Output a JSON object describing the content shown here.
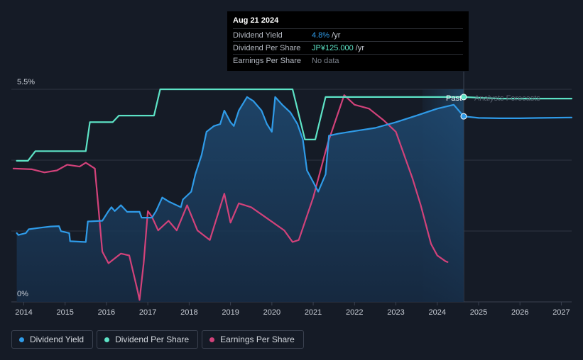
{
  "chart_data": {
    "type": "line",
    "tooltip": {
      "date": "Aug 21 2024",
      "rows": [
        {
          "label": "Dividend Yield",
          "value": "4.8%",
          "unit": " /yr"
        },
        {
          "label": "Dividend Per Share",
          "value": "JP¥125.000",
          "unit": " /yr"
        },
        {
          "label": "Earnings Per Share",
          "value": "No data",
          "unit": ""
        }
      ]
    },
    "y_tick_labels": {
      "top": "5.5%",
      "bottom": "0%"
    },
    "ylim": [
      0,
      5.5
    ],
    "xlim": [
      2013.7,
      2027.25
    ],
    "x_ticks": [
      "2014",
      "2015",
      "2016",
      "2017",
      "2018",
      "2019",
      "2020",
      "2021",
      "2022",
      "2023",
      "2024",
      "2025",
      "2026",
      "2027"
    ],
    "past_label": "Past",
    "forecast_label": "Analysts Forecasts",
    "forecast_start": 2024.64,
    "colors": {
      "background": "#151b26",
      "dividend_yield": "#2f9be8",
      "dividend_per_share": "#5de3c6",
      "earnings_per_share": "#d2427a",
      "grid": "#2e3542"
    },
    "series": [
      {
        "name": "Dividend Yield",
        "key": "dividend_yield",
        "unit": "%",
        "values": [
          [
            2013.83,
            1.78
          ],
          [
            2013.87,
            1.73
          ],
          [
            2014.05,
            1.78
          ],
          [
            2014.12,
            1.88
          ],
          [
            2014.4,
            1.92
          ],
          [
            2014.65,
            1.95
          ],
          [
            2014.85,
            1.96
          ],
          [
            2014.9,
            1.83
          ],
          [
            2015.1,
            1.78
          ],
          [
            2015.12,
            1.57
          ],
          [
            2015.5,
            1.55
          ],
          [
            2015.55,
            2.08
          ],
          [
            2015.9,
            2.1
          ],
          [
            2016.05,
            2.35
          ],
          [
            2016.12,
            2.45
          ],
          [
            2016.2,
            2.35
          ],
          [
            2016.35,
            2.5
          ],
          [
            2016.5,
            2.33
          ],
          [
            2016.8,
            2.33
          ],
          [
            2016.85,
            2.18
          ],
          [
            2017.1,
            2.18
          ],
          [
            2017.2,
            2.35
          ],
          [
            2017.35,
            2.7
          ],
          [
            2017.5,
            2.6
          ],
          [
            2017.8,
            2.45
          ],
          [
            2017.85,
            2.65
          ],
          [
            2018.05,
            2.85
          ],
          [
            2018.15,
            3.3
          ],
          [
            2018.3,
            3.8
          ],
          [
            2018.42,
            4.4
          ],
          [
            2018.6,
            4.55
          ],
          [
            2018.75,
            4.6
          ],
          [
            2018.85,
            4.95
          ],
          [
            2019.0,
            4.65
          ],
          [
            2019.08,
            4.55
          ],
          [
            2019.2,
            4.95
          ],
          [
            2019.4,
            5.3
          ],
          [
            2019.55,
            5.2
          ],
          [
            2019.75,
            4.95
          ],
          [
            2019.88,
            4.6
          ],
          [
            2020.0,
            4.4
          ],
          [
            2020.08,
            5.3
          ],
          [
            2020.25,
            5.1
          ],
          [
            2020.45,
            4.9
          ],
          [
            2020.62,
            4.6
          ],
          [
            2020.75,
            4.2
          ],
          [
            2020.85,
            3.4
          ],
          [
            2021.0,
            3.1
          ],
          [
            2021.12,
            2.85
          ],
          [
            2021.3,
            3.3
          ],
          [
            2021.38,
            4.3
          ],
          [
            2021.6,
            4.35
          ],
          [
            2022.0,
            4.42
          ],
          [
            2022.5,
            4.5
          ],
          [
            2023.0,
            4.65
          ],
          [
            2023.5,
            4.82
          ],
          [
            2024.0,
            5.0
          ],
          [
            2024.4,
            5.1
          ],
          [
            2024.64,
            4.8
          ],
          [
            2025.0,
            4.76
          ],
          [
            2025.5,
            4.75
          ],
          [
            2026.0,
            4.75
          ],
          [
            2026.5,
            4.76
          ],
          [
            2027.25,
            4.77
          ]
        ]
      },
      {
        "name": "Dividend Per Share",
        "key": "dividend_per_share",
        "unit": "JP¥",
        "values": [
          [
            2013.83,
            3.65
          ],
          [
            2014.1,
            3.65
          ],
          [
            2014.28,
            3.9
          ],
          [
            2015.5,
            3.9
          ],
          [
            2015.6,
            4.65
          ],
          [
            2016.15,
            4.65
          ],
          [
            2016.3,
            4.82
          ],
          [
            2017.15,
            4.82
          ],
          [
            2017.3,
            5.5
          ],
          [
            2020.5,
            5.5
          ],
          [
            2020.8,
            4.2
          ],
          [
            2021.05,
            4.2
          ],
          [
            2021.3,
            5.3
          ],
          [
            2024.64,
            5.3
          ],
          [
            2025.5,
            5.26
          ],
          [
            2027.25,
            5.26
          ]
        ]
      },
      {
        "name": "Earnings Per Share",
        "key": "earnings_per_share",
        "unit": "JP¥",
        "values": [
          [
            2013.75,
            3.45
          ],
          [
            2014.2,
            3.43
          ],
          [
            2014.5,
            3.35
          ],
          [
            2014.8,
            3.4
          ],
          [
            2015.05,
            3.55
          ],
          [
            2015.35,
            3.5
          ],
          [
            2015.5,
            3.6
          ],
          [
            2015.72,
            3.45
          ],
          [
            2015.8,
            2.5
          ],
          [
            2015.9,
            1.3
          ],
          [
            2016.05,
            1.0
          ],
          [
            2016.35,
            1.25
          ],
          [
            2016.55,
            1.2
          ],
          [
            2016.75,
            0.3
          ],
          [
            2016.8,
            0.05
          ],
          [
            2016.9,
            1.0
          ],
          [
            2017.0,
            2.35
          ],
          [
            2017.1,
            2.2
          ],
          [
            2017.25,
            1.85
          ],
          [
            2017.5,
            2.1
          ],
          [
            2017.7,
            1.85
          ],
          [
            2017.95,
            2.5
          ],
          [
            2018.2,
            1.85
          ],
          [
            2018.5,
            1.6
          ],
          [
            2018.85,
            2.8
          ],
          [
            2019.0,
            2.05
          ],
          [
            2019.2,
            2.55
          ],
          [
            2019.5,
            2.45
          ],
          [
            2019.9,
            2.15
          ],
          [
            2020.3,
            1.85
          ],
          [
            2020.5,
            1.55
          ],
          [
            2020.65,
            1.6
          ],
          [
            2021.0,
            2.7
          ],
          [
            2021.35,
            4.1
          ],
          [
            2021.75,
            5.35
          ],
          [
            2022.0,
            5.1
          ],
          [
            2022.35,
            5.0
          ],
          [
            2022.7,
            4.7
          ],
          [
            2023.0,
            4.4
          ],
          [
            2023.4,
            3.2
          ],
          [
            2023.6,
            2.5
          ],
          [
            2023.85,
            1.5
          ],
          [
            2024.0,
            1.2
          ],
          [
            2024.2,
            1.05
          ],
          [
            2024.25,
            1.03
          ]
        ]
      }
    ],
    "legend": [
      {
        "label": "Dividend Yield",
        "key": "dividend_yield"
      },
      {
        "label": "Dividend Per Share",
        "key": "dividend_per_share"
      },
      {
        "label": "Earnings Per Share",
        "key": "earnings_per_share"
      }
    ]
  }
}
